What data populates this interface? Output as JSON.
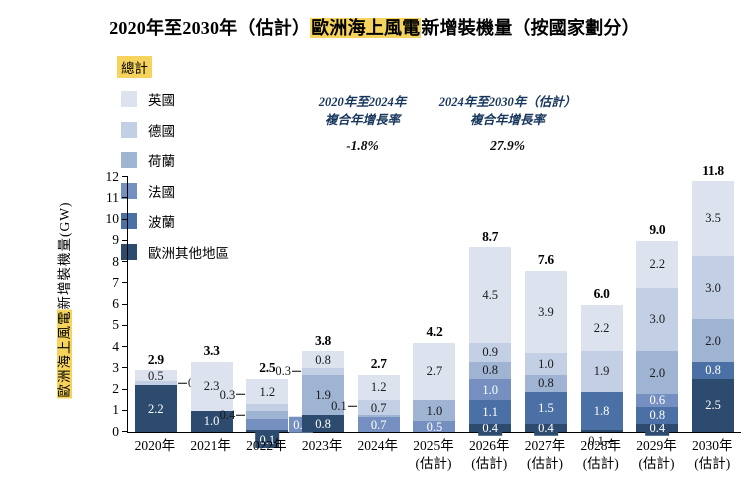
{
  "title": {
    "prefix": "2020年至2030年（估計）",
    "highlight": "歐洲海上風電",
    "suffix": "新增裝機量（按國家劃分）"
  },
  "legend": {
    "total_label": "總計",
    "items": [
      {
        "key": "uk",
        "label": "英國"
      },
      {
        "key": "de",
        "label": "德國"
      },
      {
        "key": "nl",
        "label": "荷蘭"
      },
      {
        "key": "fr",
        "label": "法國"
      },
      {
        "key": "pl",
        "label": "波蘭"
      },
      {
        "key": "rest",
        "label": "歐洲其他地區"
      }
    ]
  },
  "annotations": [
    {
      "line1": "2020年至2024年",
      "line2": "複合年增長率",
      "value": "-1.8%"
    },
    {
      "line1": "2024年至2030年（估計）",
      "line2": "複合年增長率",
      "value": "27.9%"
    }
  ],
  "colors": {
    "uk": "#dce3ef",
    "de": "#c3cfe4",
    "nl": "#9fb3d3",
    "fr": "#7590c0",
    "pl": "#4b70a6",
    "rest": "#2d4b6e",
    "highlight": "#f6d35c",
    "annotation_blue": "#17365d"
  },
  "chart_data": {
    "type": "bar",
    "stacked": true,
    "ylabel": {
      "highlight": "歐洲海上風電",
      "rest": "新增裝機量(GW)"
    },
    "ylim": [
      0,
      12
    ],
    "ytick_step": 1,
    "grid": false,
    "legend_position": "top-left",
    "series_stack_order_bottom_to_top": [
      "rest",
      "pl",
      "fr",
      "nl",
      "de",
      "uk"
    ],
    "bars": [
      {
        "category": "2020年",
        "total": 2.9,
        "segments": [
          {
            "c": "rest",
            "v": 2.2,
            "pos": "in"
          },
          {
            "c": "de",
            "v": 0.2,
            "pos": "right"
          },
          {
            "c": "uk",
            "v": 0.5,
            "pos": "in"
          }
        ]
      },
      {
        "category": "2021年",
        "total": 3.3,
        "segments": [
          {
            "c": "rest",
            "v": 1.0,
            "pos": "in"
          },
          {
            "c": "uk",
            "v": 2.3,
            "pos": "in"
          }
        ]
      },
      {
        "category": "2022年",
        "total": 2.5,
        "segments": [
          {
            "c": "rest",
            "v": 0.1,
            "pos": "chip-below"
          },
          {
            "c": "fr",
            "v": 0.5,
            "pos": "chip-right"
          },
          {
            "c": "nl",
            "v": 0.4,
            "pos": "left"
          },
          {
            "c": "de",
            "v": 0.3,
            "pos": "left",
            "dy": -13
          },
          {
            "c": "uk",
            "v": 1.2,
            "pos": "in"
          }
        ]
      },
      {
        "category": "2023年",
        "total": 3.8,
        "segments": [
          {
            "c": "rest",
            "v": 0.8,
            "pos": "in"
          },
          {
            "c": "nl",
            "v": 1.9,
            "pos": "in"
          },
          {
            "c": "de",
            "v": 0.3,
            "pos": "left"
          },
          {
            "c": "uk",
            "v": 0.8,
            "pos": "in"
          }
        ]
      },
      {
        "category": "2024年",
        "total": 2.7,
        "segments": [
          {
            "c": "fr",
            "v": 0.7,
            "pos": "in"
          },
          {
            "c": "nl",
            "v": 0.1,
            "pos": "left",
            "dy": -10
          },
          {
            "c": "de",
            "v": 0.7,
            "pos": "in"
          },
          {
            "c": "uk",
            "v": 1.2,
            "pos": "in"
          }
        ]
      },
      {
        "category": "2025年",
        "sub": "(估計)",
        "total": 4.2,
        "segments": [
          {
            "c": "fr",
            "v": 0.5,
            "pos": "in"
          },
          {
            "c": "nl",
            "v": 1.0,
            "pos": "in"
          },
          {
            "c": "uk",
            "v": 2.7,
            "pos": "in"
          }
        ]
      },
      {
        "category": "2026年",
        "sub": "(估計)",
        "total": 8.7,
        "segments": [
          {
            "c": "rest",
            "v": 0.4,
            "pos": "chip"
          },
          {
            "c": "pl",
            "v": 1.1,
            "pos": "in"
          },
          {
            "c": "fr",
            "v": 1.0,
            "pos": "in"
          },
          {
            "c": "nl",
            "v": 0.8,
            "pos": "in"
          },
          {
            "c": "de",
            "v": 0.9,
            "pos": "in"
          },
          {
            "c": "uk",
            "v": 4.5,
            "pos": "in"
          }
        ]
      },
      {
        "category": "2027年",
        "sub": "(估計)",
        "total": 7.6,
        "segments": [
          {
            "c": "rest",
            "v": 0.4,
            "pos": "chip"
          },
          {
            "c": "pl",
            "v": 1.5,
            "pos": "in"
          },
          {
            "c": "nl",
            "v": 0.8,
            "pos": "in"
          },
          {
            "c": "de",
            "v": 1.0,
            "pos": "in"
          },
          {
            "c": "uk",
            "v": 3.9,
            "pos": "in"
          }
        ]
      },
      {
        "category": "2028年",
        "sub": "(估計)",
        "total": 6.0,
        "segments": [
          {
            "c": "rest",
            "v": 0.1,
            "pos": "below"
          },
          {
            "c": "pl",
            "v": 1.8,
            "pos": "in"
          },
          {
            "c": "de",
            "v": 1.9,
            "pos": "in"
          },
          {
            "c": "uk",
            "v": 2.2,
            "pos": "in"
          }
        ]
      },
      {
        "category": "2029年",
        "sub": "(估計)",
        "total": 9.0,
        "segments": [
          {
            "c": "rest",
            "v": 0.4,
            "pos": "chip"
          },
          {
            "c": "pl",
            "v": 0.8,
            "pos": "in"
          },
          {
            "c": "fr",
            "v": 0.6,
            "pos": "in"
          },
          {
            "c": "nl",
            "v": 2.0,
            "pos": "in"
          },
          {
            "c": "de",
            "v": 3.0,
            "pos": "in"
          },
          {
            "c": "uk",
            "v": 2.2,
            "pos": "in"
          }
        ]
      },
      {
        "category": "2030年",
        "sub": "(估計)",
        "total": 11.8,
        "segments": [
          {
            "c": "rest",
            "v": 2.5,
            "pos": "in"
          },
          {
            "c": "pl",
            "v": 0.8,
            "pos": "in"
          },
          {
            "c": "nl",
            "v": 2.0,
            "pos": "in"
          },
          {
            "c": "de",
            "v": 3.0,
            "pos": "in"
          },
          {
            "c": "uk",
            "v": 3.5,
            "pos": "in"
          }
        ]
      }
    ]
  }
}
